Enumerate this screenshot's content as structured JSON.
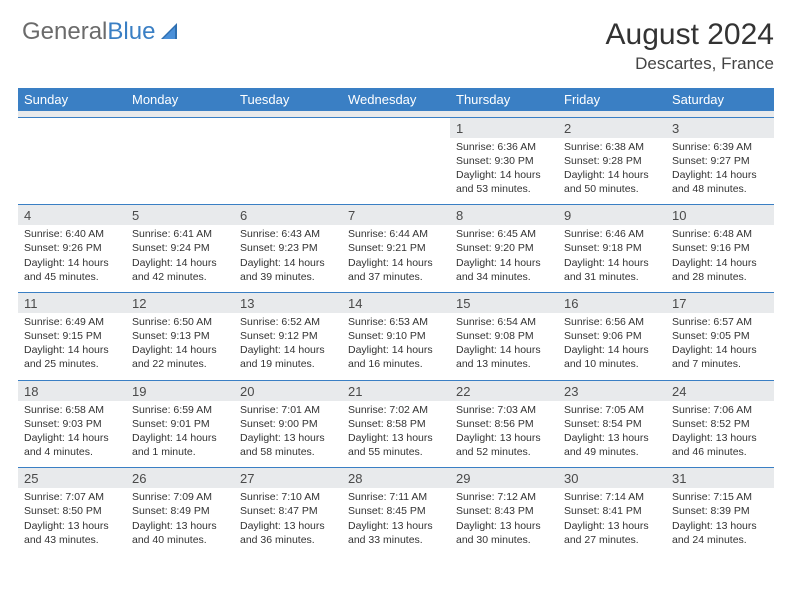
{
  "brand": {
    "part1": "General",
    "part2": "Blue"
  },
  "title": "August 2024",
  "location": "Descartes, France",
  "colors": {
    "header_bg": "#3a7fc4",
    "header_text": "#ffffff",
    "daynum_bg": "#e8eaec",
    "border": "#3a7fc4",
    "text": "#333333"
  },
  "day_names": [
    "Sunday",
    "Monday",
    "Tuesday",
    "Wednesday",
    "Thursday",
    "Friday",
    "Saturday"
  ],
  "weeks": [
    [
      null,
      null,
      null,
      null,
      {
        "n": "1",
        "sr": "6:36 AM",
        "ss": "9:30 PM",
        "dl": "14 hours and 53 minutes."
      },
      {
        "n": "2",
        "sr": "6:38 AM",
        "ss": "9:28 PM",
        "dl": "14 hours and 50 minutes."
      },
      {
        "n": "3",
        "sr": "6:39 AM",
        "ss": "9:27 PM",
        "dl": "14 hours and 48 minutes."
      }
    ],
    [
      {
        "n": "4",
        "sr": "6:40 AM",
        "ss": "9:26 PM",
        "dl": "14 hours and 45 minutes."
      },
      {
        "n": "5",
        "sr": "6:41 AM",
        "ss": "9:24 PM",
        "dl": "14 hours and 42 minutes."
      },
      {
        "n": "6",
        "sr": "6:43 AM",
        "ss": "9:23 PM",
        "dl": "14 hours and 39 minutes."
      },
      {
        "n": "7",
        "sr": "6:44 AM",
        "ss": "9:21 PM",
        "dl": "14 hours and 37 minutes."
      },
      {
        "n": "8",
        "sr": "6:45 AM",
        "ss": "9:20 PM",
        "dl": "14 hours and 34 minutes."
      },
      {
        "n": "9",
        "sr": "6:46 AM",
        "ss": "9:18 PM",
        "dl": "14 hours and 31 minutes."
      },
      {
        "n": "10",
        "sr": "6:48 AM",
        "ss": "9:16 PM",
        "dl": "14 hours and 28 minutes."
      }
    ],
    [
      {
        "n": "11",
        "sr": "6:49 AM",
        "ss": "9:15 PM",
        "dl": "14 hours and 25 minutes."
      },
      {
        "n": "12",
        "sr": "6:50 AM",
        "ss": "9:13 PM",
        "dl": "14 hours and 22 minutes."
      },
      {
        "n": "13",
        "sr": "6:52 AM",
        "ss": "9:12 PM",
        "dl": "14 hours and 19 minutes."
      },
      {
        "n": "14",
        "sr": "6:53 AM",
        "ss": "9:10 PM",
        "dl": "14 hours and 16 minutes."
      },
      {
        "n": "15",
        "sr": "6:54 AM",
        "ss": "9:08 PM",
        "dl": "14 hours and 13 minutes."
      },
      {
        "n": "16",
        "sr": "6:56 AM",
        "ss": "9:06 PM",
        "dl": "14 hours and 10 minutes."
      },
      {
        "n": "17",
        "sr": "6:57 AM",
        "ss": "9:05 PM",
        "dl": "14 hours and 7 minutes."
      }
    ],
    [
      {
        "n": "18",
        "sr": "6:58 AM",
        "ss": "9:03 PM",
        "dl": "14 hours and 4 minutes."
      },
      {
        "n": "19",
        "sr": "6:59 AM",
        "ss": "9:01 PM",
        "dl": "14 hours and 1 minute."
      },
      {
        "n": "20",
        "sr": "7:01 AM",
        "ss": "9:00 PM",
        "dl": "13 hours and 58 minutes."
      },
      {
        "n": "21",
        "sr": "7:02 AM",
        "ss": "8:58 PM",
        "dl": "13 hours and 55 minutes."
      },
      {
        "n": "22",
        "sr": "7:03 AM",
        "ss": "8:56 PM",
        "dl": "13 hours and 52 minutes."
      },
      {
        "n": "23",
        "sr": "7:05 AM",
        "ss": "8:54 PM",
        "dl": "13 hours and 49 minutes."
      },
      {
        "n": "24",
        "sr": "7:06 AM",
        "ss": "8:52 PM",
        "dl": "13 hours and 46 minutes."
      }
    ],
    [
      {
        "n": "25",
        "sr": "7:07 AM",
        "ss": "8:50 PM",
        "dl": "13 hours and 43 minutes."
      },
      {
        "n": "26",
        "sr": "7:09 AM",
        "ss": "8:49 PM",
        "dl": "13 hours and 40 minutes."
      },
      {
        "n": "27",
        "sr": "7:10 AM",
        "ss": "8:47 PM",
        "dl": "13 hours and 36 minutes."
      },
      {
        "n": "28",
        "sr": "7:11 AM",
        "ss": "8:45 PM",
        "dl": "13 hours and 33 minutes."
      },
      {
        "n": "29",
        "sr": "7:12 AM",
        "ss": "8:43 PM",
        "dl": "13 hours and 30 minutes."
      },
      {
        "n": "30",
        "sr": "7:14 AM",
        "ss": "8:41 PM",
        "dl": "13 hours and 27 minutes."
      },
      {
        "n": "31",
        "sr": "7:15 AM",
        "ss": "8:39 PM",
        "dl": "13 hours and 24 minutes."
      }
    ]
  ],
  "labels": {
    "sunrise": "Sunrise:",
    "sunset": "Sunset:",
    "daylight": "Daylight:"
  }
}
